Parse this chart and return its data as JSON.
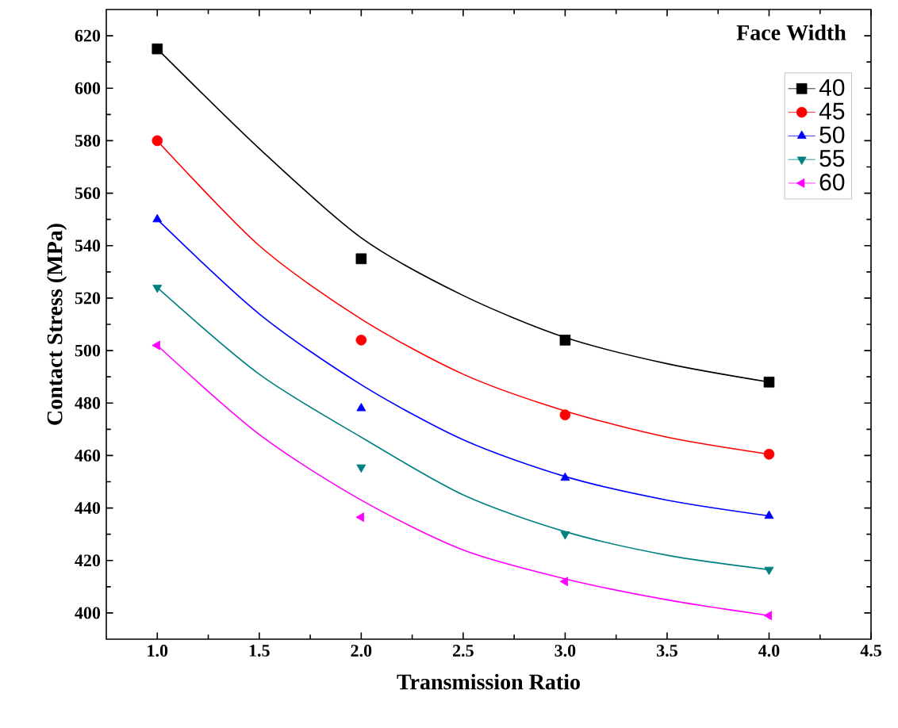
{
  "chart_data": {
    "type": "scatter",
    "xlabel": "Transmission Ratio",
    "ylabel": "Contact Stress (MPa)",
    "legend_title": "Face Width",
    "legend": "top right",
    "xlim": [
      0.75,
      4.5
    ],
    "ylim": [
      390,
      630
    ],
    "xticks": [
      {
        "value": 1,
        "label": "1.0"
      },
      {
        "value": 1.5,
        "label": "1.5"
      },
      {
        "value": 2,
        "label": "2.0"
      },
      {
        "value": 2.5,
        "label": "2.5"
      },
      {
        "value": 3,
        "label": "3.0"
      },
      {
        "value": 3.5,
        "label": "3.5"
      },
      {
        "value": 4,
        "label": "4.0"
      },
      {
        "value": 4.5,
        "label": "4.5"
      }
    ],
    "yticks": [
      400,
      420,
      440,
      460,
      480,
      500,
      520,
      540,
      560,
      580,
      600,
      620
    ],
    "series": [
      {
        "name": "40",
        "color": "#000000",
        "marker": "square",
        "x": [
          1,
          2,
          3,
          4
        ],
        "values": [
          615,
          535,
          504,
          488
        ]
      },
      {
        "name": "45",
        "color": "#ff0000",
        "marker": "circle",
        "x": [
          1,
          2,
          3,
          4
        ],
        "values": [
          580,
          504,
          475.5,
          460.5
        ]
      },
      {
        "name": "50",
        "color": "#0000ff",
        "marker": "triangle",
        "x": [
          1,
          2,
          3,
          4
        ],
        "values": [
          550,
          478,
          451.5,
          437
        ]
      },
      {
        "name": "55",
        "color": "#008080",
        "marker": "triangle-down",
        "x": [
          1,
          2,
          3,
          4
        ],
        "values": [
          524,
          455.5,
          430,
          416.5
        ]
      },
      {
        "name": "60",
        "color": "#ff00ff",
        "marker": "triangle-left",
        "x": [
          1,
          2,
          3,
          4
        ],
        "values": [
          502,
          436.5,
          412,
          399
        ]
      },
      {
        "type": "line",
        "color": "#000000",
        "x": [
          1,
          1.5,
          2,
          2.5,
          3,
          3.5,
          4
        ],
        "values": [
          615,
          577,
          543,
          521,
          505,
          495,
          488
        ]
      },
      {
        "type": "line",
        "color": "#ff0000",
        "x": [
          1,
          1.5,
          2,
          2.5,
          3,
          3.5,
          4
        ],
        "values": [
          580,
          540,
          512,
          491,
          477,
          467,
          460.5
        ]
      },
      {
        "type": "line",
        "color": "#0000ff",
        "x": [
          1,
          1.5,
          2,
          2.5,
          3,
          3.5,
          4
        ],
        "values": [
          550,
          514,
          487,
          466,
          452,
          443,
          437
        ]
      },
      {
        "type": "line",
        "color": "#008080",
        "x": [
          1,
          1.5,
          2,
          2.5,
          3,
          3.5,
          4
        ],
        "values": [
          524,
          491,
          467,
          445,
          431,
          422,
          416.5
        ]
      },
      {
        "type": "line",
        "color": "#ff00ff",
        "x": [
          1,
          1.5,
          2,
          2.5,
          3,
          3.5,
          4
        ],
        "values": [
          502,
          468,
          443,
          424,
          413,
          405,
          399
        ]
      }
    ]
  }
}
